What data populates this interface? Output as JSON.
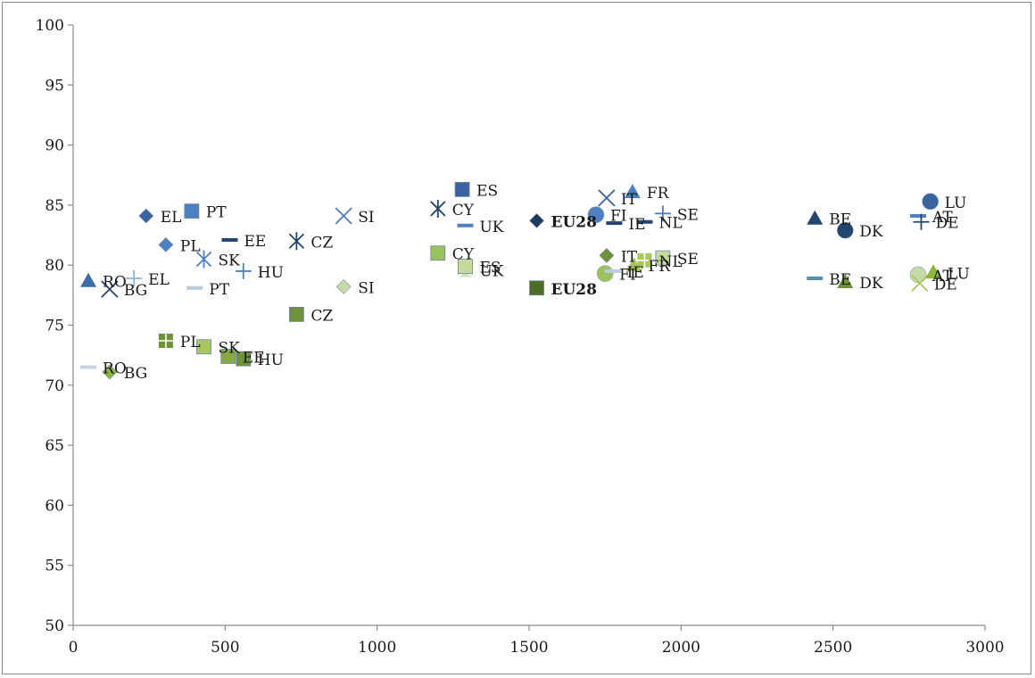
{
  "chart_data": {
    "type": "scatter",
    "title": "",
    "xlabel": "",
    "ylabel": "",
    "xlim": [
      0,
      3000
    ],
    "ylim": [
      50,
      100
    ],
    "xticks": [
      0,
      500,
      1000,
      1500,
      2000,
      2500,
      3000
    ],
    "yticks": [
      50,
      55,
      60,
      65,
      70,
      75,
      80,
      85,
      90,
      95,
      100
    ],
    "grid": false,
    "legend": "none",
    "series": [
      {
        "group": "upper",
        "points": [
          {
            "label": "RO",
            "x": 50,
            "y": 78.7,
            "marker": "triangle",
            "color": "#3c6ea9"
          },
          {
            "label": "BG",
            "x": 120,
            "y": 78.0,
            "marker": "x",
            "color": "#24456e"
          },
          {
            "label": "EL",
            "x": 240,
            "y": 84.1,
            "marker": "diamond",
            "color": "#3a64a0"
          },
          {
            "label": "PL",
            "x": 305,
            "y": 81.7,
            "marker": "diamond",
            "color": "#4e80c2"
          },
          {
            "label": "PT",
            "x": 390,
            "y": 84.5,
            "marker": "square",
            "color": "#4e80c2"
          },
          {
            "label": "SK",
            "x": 430,
            "y": 80.5,
            "marker": "asterisk",
            "color": "#4e80c2"
          },
          {
            "label": "EE",
            "x": 515,
            "y": 82.1,
            "marker": "dash",
            "color": "#24456e"
          },
          {
            "label": "CZ",
            "x": 735,
            "y": 82.0,
            "marker": "asterisk",
            "color": "#24456e"
          },
          {
            "label": "SI",
            "x": 890,
            "y": 84.1,
            "marker": "x",
            "color": "#4e80c2"
          },
          {
            "label": "CY",
            "x": 1200,
            "y": 84.7,
            "marker": "asterisk",
            "color": "#24456e"
          },
          {
            "label": "UK",
            "x": 1290,
            "y": 83.3,
            "marker": "dash",
            "color": "#4e80c2"
          },
          {
            "label": "ES",
            "x": 1280,
            "y": 86.3,
            "marker": "square",
            "color": "#3a64a0"
          },
          {
            "label": "EU28",
            "x": 1525,
            "y": 83.7,
            "marker": "diamond",
            "color": "#1f3a5f",
            "bold": true
          },
          {
            "label": "FI",
            "x": 1720,
            "y": 84.2,
            "marker": "circle",
            "color": "#4e80c2"
          },
          {
            "label": "IE",
            "x": 1780,
            "y": 83.5,
            "marker": "dash",
            "color": "#24456e"
          },
          {
            "label": "IT",
            "x": 1755,
            "y": 85.6,
            "marker": "x",
            "color": "#3a64a0"
          },
          {
            "label": "FR",
            "x": 1840,
            "y": 86.1,
            "marker": "triangle",
            "color": "#4e80c2"
          },
          {
            "label": "NL",
            "x": 1880,
            "y": 83.6,
            "marker": "dash",
            "color": "#24456e"
          },
          {
            "label": "SE",
            "x": 1940,
            "y": 84.3,
            "marker": "plus",
            "color": "#4e80c2"
          },
          {
            "label": "BE",
            "x": 2440,
            "y": 83.9,
            "marker": "triangle",
            "color": "#24456e"
          },
          {
            "label": "DK",
            "x": 2540,
            "y": 82.9,
            "marker": "circle",
            "color": "#24456e"
          },
          {
            "label": "AT",
            "x": 2780,
            "y": 84.1,
            "marker": "dash",
            "color": "#4e80c2"
          },
          {
            "label": "DE",
            "x": 2790,
            "y": 83.6,
            "marker": "plus",
            "color": "#24456e"
          },
          {
            "label": "LU",
            "x": 2820,
            "y": 85.3,
            "marker": "circle",
            "color": "#3a64a0"
          },
          {
            "label": "EL",
            "x": 200,
            "y": 78.9,
            "marker": "plus",
            "color": "#8fb3dc"
          },
          {
            "label": "PT",
            "x": 400,
            "y": 78.1,
            "marker": "dash",
            "color": "#b8cbe0"
          },
          {
            "label": "HU",
            "x": 560,
            "y": 79.5,
            "marker": "plus",
            "color": "#4e80c2"
          }
        ]
      },
      {
        "group": "lower",
        "points": [
          {
            "label": "RO",
            "x": 50,
            "y": 71.5,
            "marker": "dash",
            "color": "#c5d4e6"
          },
          {
            "label": "BG",
            "x": 120,
            "y": 71.1,
            "marker": "diamond",
            "color": "#8db63b"
          },
          {
            "label": "PL",
            "x": 305,
            "y": 73.7,
            "marker": "plus-square",
            "color": "#6f913a"
          },
          {
            "label": "SK",
            "x": 430,
            "y": 73.2,
            "marker": "square",
            "color": "#a8c75e"
          },
          {
            "label": "EE",
            "x": 510,
            "y": 72.4,
            "marker": "square",
            "color": "#88a84a"
          },
          {
            "label": "HU",
            "x": 560,
            "y": 72.2,
            "marker": "square",
            "color": "#6f913a"
          },
          {
            "label": "CZ",
            "x": 735,
            "y": 75.9,
            "marker": "square",
            "color": "#6f913a"
          },
          {
            "label": "SI",
            "x": 890,
            "y": 78.2,
            "marker": "diamond",
            "color": "#c7d9a7"
          },
          {
            "label": "CY",
            "x": 1200,
            "y": 81.0,
            "marker": "square",
            "color": "#9bc25a"
          },
          {
            "label": "UK",
            "x": 1290,
            "y": 79.6,
            "marker": "x-square",
            "color": "#d3e2bd"
          },
          {
            "label": "ES",
            "x": 1290,
            "y": 79.9,
            "marker": "square",
            "color": "#c4d99c"
          },
          {
            "label": "EU28",
            "x": 1525,
            "y": 78.1,
            "marker": "square",
            "color": "#4f6b28",
            "bold": true
          },
          {
            "label": "FI",
            "x": 1750,
            "y": 79.3,
            "marker": "circle",
            "color": "#9bc25a"
          },
          {
            "label": "IT",
            "x": 1755,
            "y": 80.8,
            "marker": "diamond",
            "color": "#6f913a"
          },
          {
            "label": "IE",
            "x": 1775,
            "y": 79.5,
            "marker": "dash",
            "color": "#b8cbe0"
          },
          {
            "label": "FR",
            "x": 1845,
            "y": 80.0,
            "marker": "triangle",
            "color": "#a8c75e"
          },
          {
            "label": "NL",
            "x": 1880,
            "y": 80.4,
            "marker": "plus-square",
            "color": "#a8c75e"
          },
          {
            "label": "SE",
            "x": 1940,
            "y": 80.6,
            "marker": "square",
            "color": "#c4d99c"
          },
          {
            "label": "BE",
            "x": 2440,
            "y": 78.9,
            "marker": "dash",
            "color": "#5b8fb0"
          },
          {
            "label": "DK",
            "x": 2540,
            "y": 78.6,
            "marker": "triangle",
            "color": "#6f913a"
          },
          {
            "label": "AT",
            "x": 2780,
            "y": 79.2,
            "marker": "circle",
            "color": "#c7d9a7"
          },
          {
            "label": "DE",
            "x": 2785,
            "y": 78.5,
            "marker": "x",
            "color": "#a8c75e"
          },
          {
            "label": "LU",
            "x": 2830,
            "y": 79.4,
            "marker": "triangle",
            "color": "#8db63b"
          }
        ]
      }
    ]
  }
}
